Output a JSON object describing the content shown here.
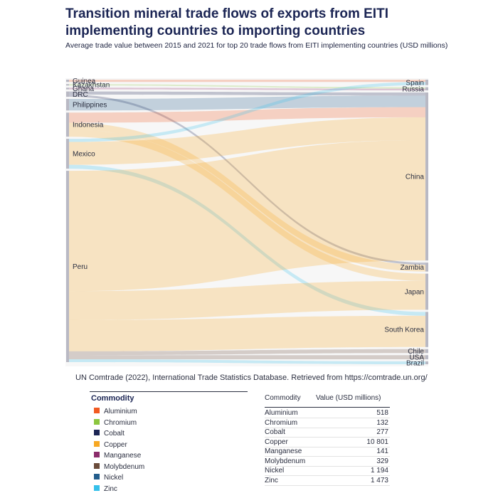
{
  "header": {
    "title": "Transition mineral trade flows of exports from EITI implementing countries to importing countries",
    "subtitle": "Average trade value between 2015 and 2021 for top 20 trade flows from EITI implementing countries (USD millions)"
  },
  "source_note": "UN Comtrade (2022), International Trade Statistics Database. Retrieved from https://comtrade.un.org/",
  "legend": {
    "title": "Commodity",
    "items": [
      {
        "label": "Aluminium",
        "color": "#f15a22"
      },
      {
        "label": "Chromium",
        "color": "#8cc63f"
      },
      {
        "label": "Cobalt",
        "color": "#1b2554"
      },
      {
        "label": "Copper",
        "color": "#f7a823"
      },
      {
        "label": "Manganese",
        "color": "#8b2c6b"
      },
      {
        "label": "Molybdenum",
        "color": "#6b4c3b"
      },
      {
        "label": "Nickel",
        "color": "#235d8c"
      },
      {
        "label": "Zinc",
        "color": "#35c0ea"
      }
    ]
  },
  "table": {
    "headers": [
      "Commodity",
      "Value (USD millions)"
    ],
    "rows": [
      {
        "commodity": "Aluminium",
        "value": "518"
      },
      {
        "commodity": "Chromium",
        "value": "132"
      },
      {
        "commodity": "Cobalt",
        "value": "277"
      },
      {
        "commodity": "Copper",
        "value": "10 801"
      },
      {
        "commodity": "Manganese",
        "value": "141"
      },
      {
        "commodity": "Molybdenum",
        "value": "329"
      },
      {
        "commodity": "Nickel",
        "value": "1 194"
      },
      {
        "commodity": "Zinc",
        "value": "1 473"
      }
    ]
  },
  "chart_data": {
    "type": "sankey",
    "title": "Transition mineral trade flows of exports from EITI implementing countries to importing countries",
    "sources": [
      "Guinea",
      "Kazakhstan",
      "Ghana",
      "DRC",
      "Philippines",
      "Indonesia",
      "Mexico",
      "Peru"
    ],
    "targets": [
      "Spain",
      "Russia",
      "China",
      "Zambia",
      "Japan",
      "South Korea",
      "Chile",
      "USA",
      "Brazil"
    ],
    "flows": [
      {
        "from": "Guinea",
        "to": "Spain",
        "commodity": "Aluminium",
        "value": 95
      },
      {
        "from": "Kazakhstan",
        "to": "Russia",
        "commodity": "Chromium",
        "value": 60
      },
      {
        "from": "Ghana",
        "to": "Russia",
        "commodity": "Manganese",
        "value": 70
      },
      {
        "from": "DRC",
        "to": "China",
        "commodity": "Cobalt",
        "value": 130
      },
      {
        "from": "DRC",
        "to": "Zambia",
        "commodity": "Cobalt",
        "value": 90
      },
      {
        "from": "Philippines",
        "to": "China",
        "commodity": "Nickel",
        "value": 480
      },
      {
        "from": "Indonesia",
        "to": "China",
        "commodity": "Aluminium",
        "value": 420
      },
      {
        "from": "Indonesia",
        "to": "Zambia",
        "commodity": "Copper",
        "value": 280
      },
      {
        "from": "Indonesia",
        "to": "Japan",
        "commodity": "Copper",
        "value": 300
      },
      {
        "from": "Mexico",
        "to": "China",
        "commodity": "Copper",
        "value": 950
      },
      {
        "from": "Mexico",
        "to": "Spain",
        "commodity": "Zinc",
        "value": 130
      },
      {
        "from": "Mexico",
        "to": "South Korea",
        "commodity": "Zinc",
        "value": 160
      },
      {
        "from": "Peru",
        "to": "China",
        "commodity": "Copper",
        "value": 5000
      },
      {
        "from": "Peru",
        "to": "Japan",
        "commodity": "Copper",
        "value": 1200
      },
      {
        "from": "Peru",
        "to": "South Korea",
        "commodity": "Copper",
        "value": 1300
      },
      {
        "from": "Peru",
        "to": "Chile",
        "commodity": "Molybdenum",
        "value": 160
      },
      {
        "from": "Peru",
        "to": "USA",
        "commodity": "Molybdenum",
        "value": 169
      },
      {
        "from": "Peru",
        "to": "Brazil",
        "commodity": "Zinc",
        "value": 120
      }
    ]
  }
}
